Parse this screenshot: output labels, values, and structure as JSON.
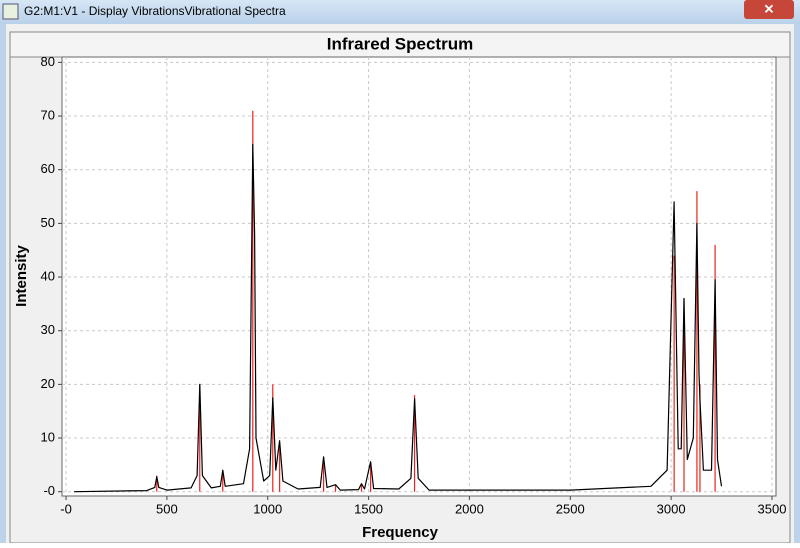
{
  "window": {
    "title": "G2:M1:V1 - Display VibrationsVibrational Spectra"
  },
  "chart_data": {
    "type": "spectrum",
    "title": "Infrared Spectrum",
    "x_label": "Frequency",
    "y_label": "Intensity",
    "xlim": [
      -20,
      3520
    ],
    "ylim": [
      -0.8,
      81
    ],
    "xticks": [
      {
        "value": 0,
        "label": "-0"
      },
      500,
      1000,
      1500,
      2000,
      2500,
      3000,
      3500
    ],
    "yticks": [
      {
        "value": 0,
        "label": "-0"
      },
      10,
      20,
      30,
      40,
      50,
      60,
      70,
      80
    ],
    "grid": true,
    "sticks": {
      "color": "#e8241c",
      "x": [
        450,
        663,
        777,
        926,
        1025,
        1059,
        1277,
        1336,
        1465,
        1510,
        1728,
        3015,
        3064,
        3128,
        3143,
        3218
      ],
      "values": [
        3,
        20,
        4,
        71,
        20,
        9,
        6,
        1.3,
        1.5,
        5.5,
        18,
        44,
        36,
        56,
        20,
        46
      ]
    },
    "spectrum": {
      "color": "#000000",
      "x": [
        40,
        400,
        440,
        450,
        460,
        500,
        620,
        650,
        663,
        676,
        720,
        765,
        777,
        789,
        880,
        910,
        926,
        935,
        942,
        980,
        1010,
        1025,
        1040,
        1059,
        1075,
        1150,
        1260,
        1277,
        1294,
        1336,
        1360,
        1450,
        1465,
        1480,
        1510,
        1525,
        1650,
        1710,
        1728,
        1746,
        1800,
        2500,
        2900,
        2980,
        3015,
        3035,
        3050,
        3064,
        3080,
        3110,
        3128,
        3138,
        3143,
        3160,
        3200,
        3218,
        3230,
        3250
      ],
      "values": [
        0,
        0.2,
        0.8,
        2.8,
        0.8,
        0.3,
        0.7,
        3,
        20,
        3,
        0.7,
        1,
        4,
        1,
        1.5,
        8,
        64.7,
        48,
        10,
        2,
        3,
        17.5,
        4,
        9.5,
        2,
        0.5,
        0.8,
        6.5,
        0.8,
        1.3,
        0.3,
        0.4,
        1.5,
        0.5,
        5.6,
        0.6,
        0.5,
        2.5,
        17.3,
        2.5,
        0.3,
        0.3,
        1,
        4,
        54,
        8,
        8,
        36,
        6,
        10,
        50,
        22,
        17,
        4,
        4,
        39.5,
        6,
        1
      ]
    }
  }
}
